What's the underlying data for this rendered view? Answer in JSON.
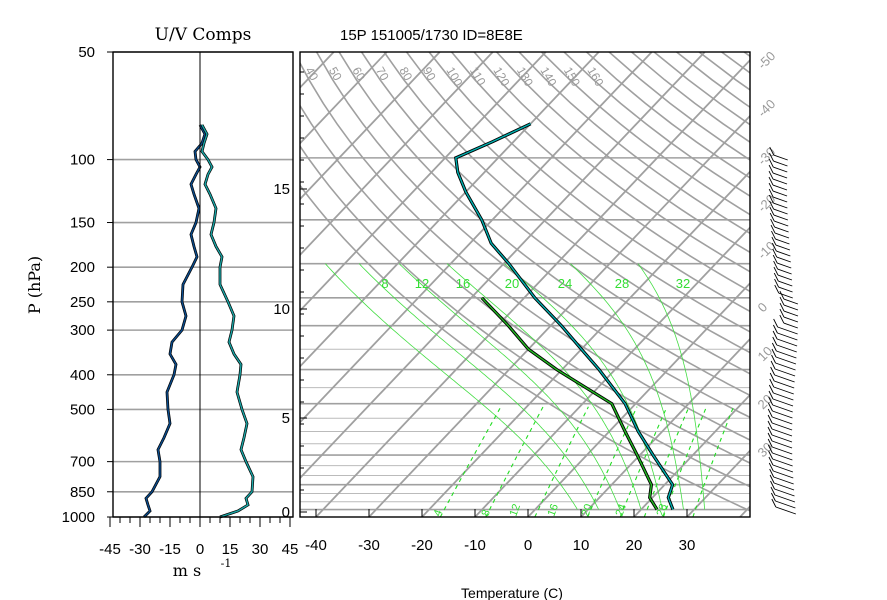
{
  "uv_panel": {
    "title": "U/V Comps",
    "ylabel": "P (hPa)",
    "xlabel": "m s",
    "xlabel_exp": "-1",
    "p_ticks": [
      50,
      100,
      150,
      200,
      250,
      300,
      400,
      500,
      700,
      850,
      1000
    ],
    "x_ticks": [
      "-45",
      "-30",
      "-15",
      "0",
      "15",
      "30",
      "45"
    ]
  },
  "skewt_panel": {
    "title": "15P 151005/1730 ID=8E8E",
    "xlabel": "Temperature (C)",
    "x_ticks": [
      "-40",
      "-30",
      "-20",
      "-10",
      "0",
      "10",
      "20",
      "30"
    ],
    "height_ticks": [
      "0",
      "5",
      "10",
      "15"
    ],
    "mixing_ratio_labels": [
      "8",
      "12",
      "16",
      "20",
      "24",
      "28",
      "32"
    ],
    "dry_adiabat_labels": [
      "40",
      "50",
      "60",
      "70",
      "80",
      "90",
      "100",
      "110",
      "120",
      "130",
      "140",
      "150",
      "160"
    ],
    "isotherm_labels": [
      "-50",
      "-40",
      "-30",
      "-20",
      "-10",
      "0",
      "10",
      "20",
      "30"
    ],
    "moist_adiabat_labels": [
      "4",
      "8",
      "12",
      "16",
      "20",
      "24",
      "28"
    ]
  },
  "chart_data": {
    "type": "line",
    "title": "15P 151005/1730 ID=8E8E",
    "pressure_hpa": [
      1000,
      925,
      850,
      700,
      600,
      500,
      400,
      350,
      300,
      250,
      200,
      175,
      150,
      125,
      110,
      100,
      90,
      80
    ],
    "series": [
      {
        "name": "u",
        "values": [
          -28,
          -26,
          -24,
          -20,
          -18,
          -16,
          -13,
          -15,
          -9,
          -9,
          -4,
          -3,
          -2,
          -3,
          -2,
          -2,
          1,
          0
        ],
        "color": "#0a4b8c"
      },
      {
        "name": "v",
        "values": [
          10,
          24,
          26,
          23,
          22,
          21,
          20,
          17,
          16,
          14,
          10,
          8,
          7,
          5,
          4,
          4,
          2,
          1
        ],
        "color": "#1aa6a6"
      },
      {
        "name": "temperature",
        "temperature_c": [
          26.0,
          23.0,
          21.5,
          12.5,
          5.5,
          -2.0,
          -13.0,
          -20.0,
          -28.0,
          -38.0,
          -49.0,
          -56.0,
          -62.0,
          -70.0,
          -75.0,
          -78.0,
          -74.0,
          -70.0
        ],
        "color": "#004848"
      },
      {
        "name": "dewpoint",
        "dewpoint_c": [
          23.0,
          19.5,
          17.5,
          9.5,
          3.0,
          -4.5,
          -21.0,
          -30.0,
          -38.0,
          -48.0
        ],
        "color": "#1f5f1f"
      }
    ],
    "uv_xlim": [
      -45,
      45
    ],
    "uv_ylim_hpa": [
      1000,
      50
    ],
    "skewt_xlim_c": [
      -40,
      40
    ],
    "skewt_ylim_hpa": [
      1050,
      50
    ],
    "yscale": "log",
    "grid": true
  }
}
